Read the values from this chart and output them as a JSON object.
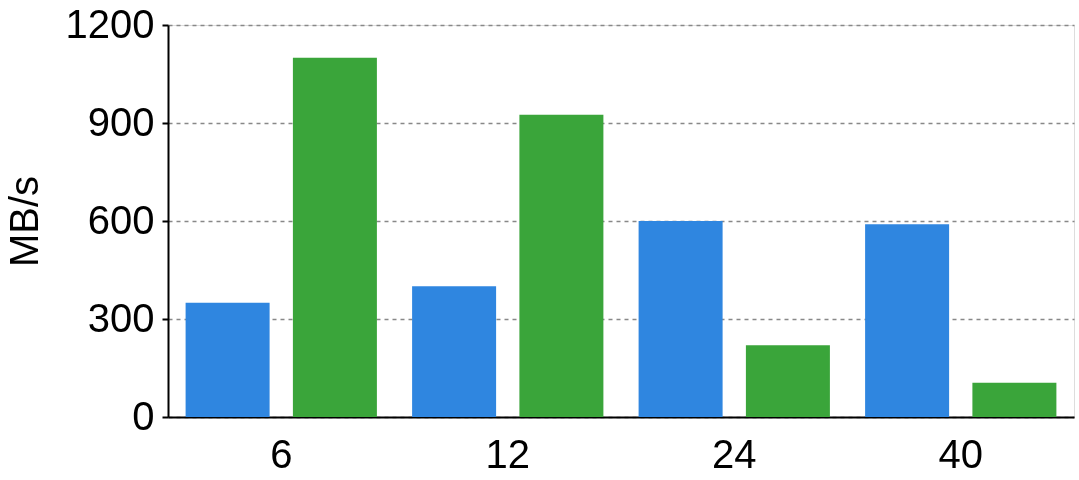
{
  "chart_data": {
    "type": "bar",
    "ylabel": "MB/s",
    "categories": [
      "6",
      "12",
      "24",
      "40"
    ],
    "series": [
      {
        "color": "#2f86e0",
        "values": [
          350,
          400,
          600,
          590
        ]
      },
      {
        "color": "#3aa53a",
        "values": [
          1100,
          925,
          220,
          105
        ]
      }
    ],
    "ylim": [
      0,
      1200
    ],
    "yticks": [
      0,
      300,
      600,
      900,
      1200
    ],
    "grid": "y"
  }
}
